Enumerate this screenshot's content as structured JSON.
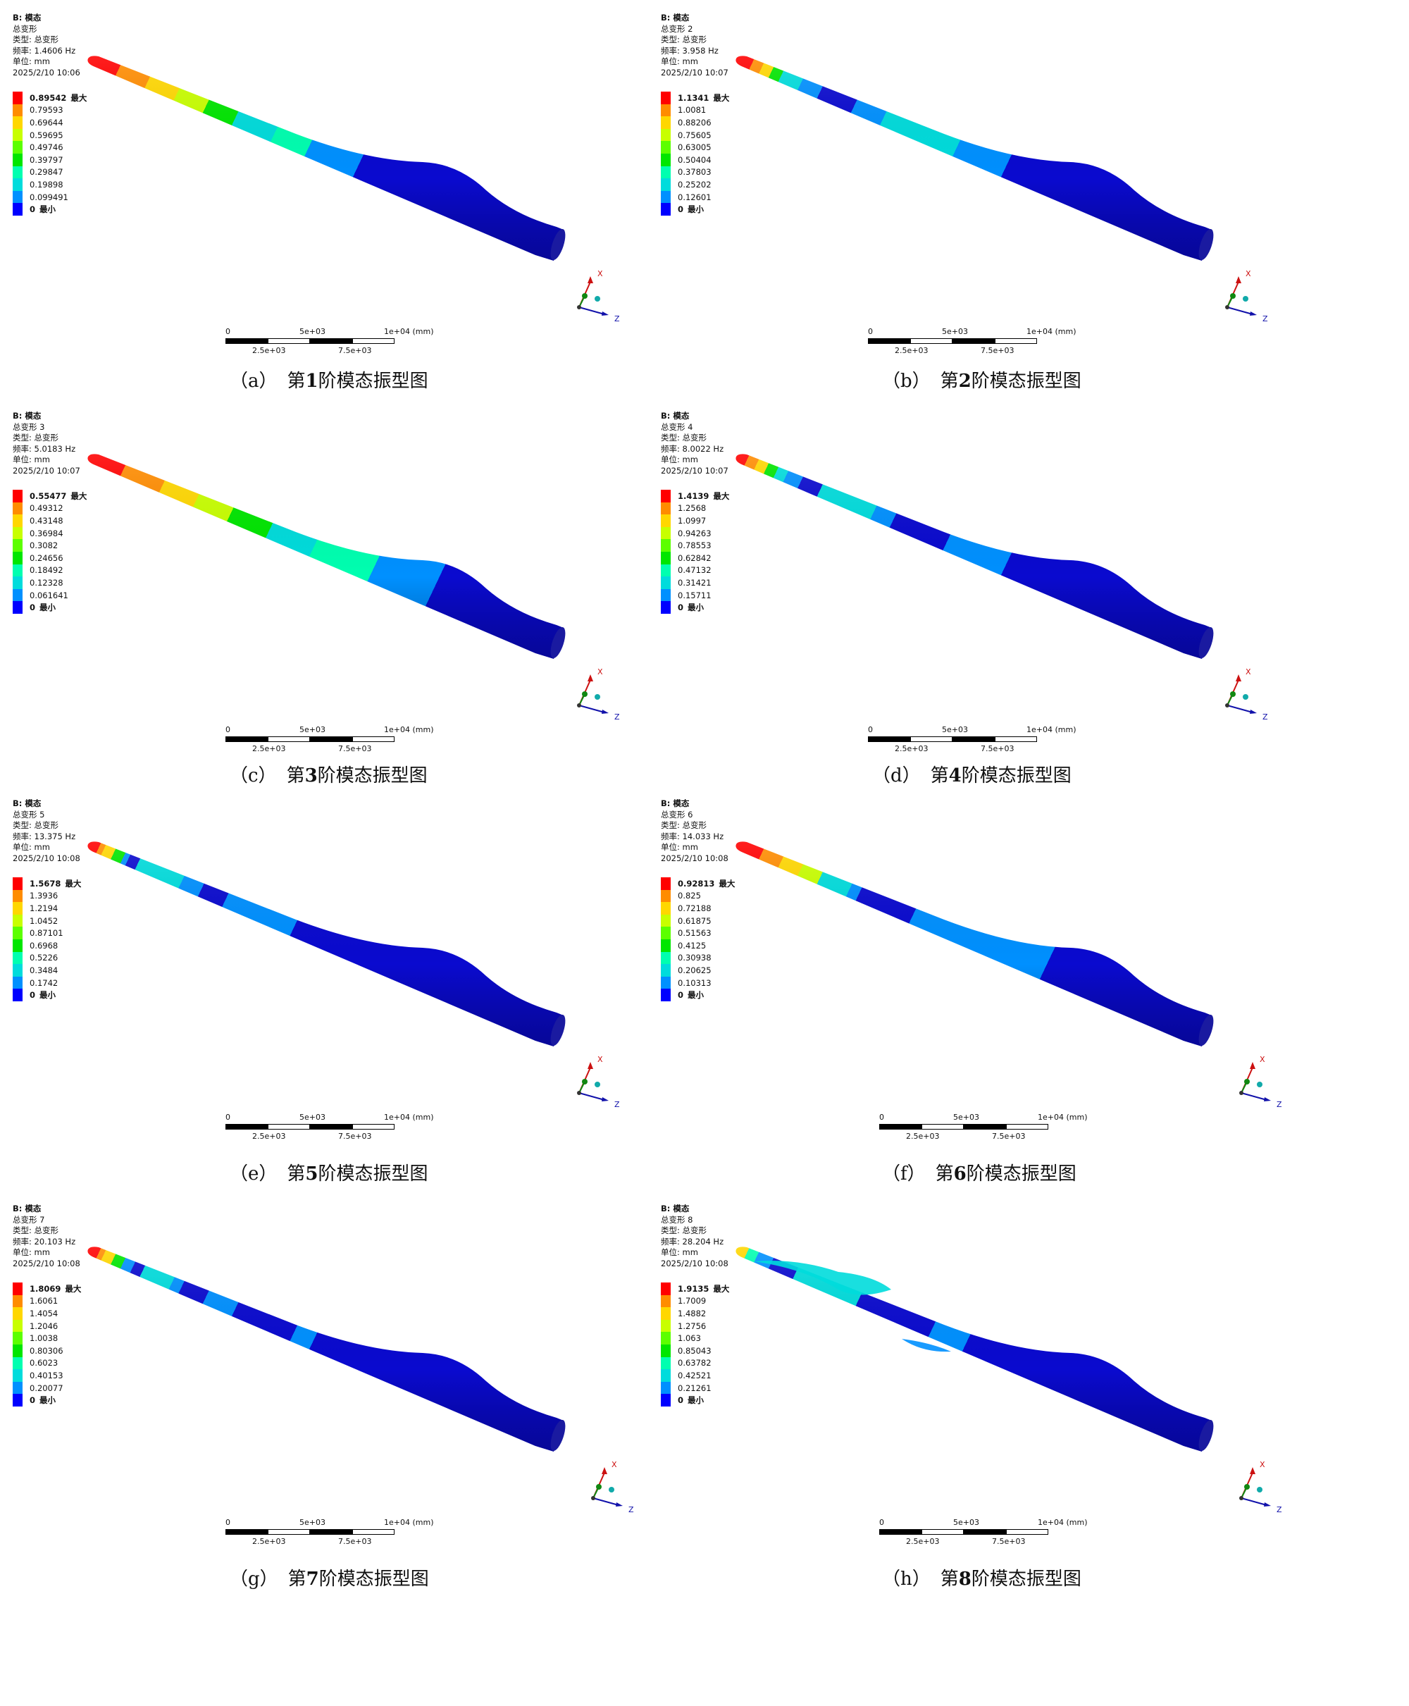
{
  "panels": [
    {
      "tag": "（a）",
      "caption_prefix": "第",
      "order": "1",
      "caption_suffix": "阶模态振型图",
      "info": [
        "B: 模态",
        "总变形",
        "类型: 总变形",
        "频率: 1.4606   Hz",
        "单位: mm",
        "2025/2/10 10:06"
      ],
      "legend": [
        "0.89542",
        "0.79593",
        "0.69644",
        "0.59695",
        "0.49746",
        "0.39797",
        "0.29847",
        "0.19898",
        "0.099491",
        "0"
      ],
      "max_tag": "最大",
      "min_tag": "最小",
      "mode": "m1"
    },
    {
      "tag": "（b）",
      "caption_prefix": "第",
      "order": "2",
      "caption_suffix": "阶模态振型图",
      "info": [
        "B: 模态",
        "总变形 2",
        "类型: 总变形",
        "频率: 3.958   Hz",
        "单位: mm",
        "2025/2/10 10:07"
      ],
      "legend": [
        "1.1341",
        "1.0081",
        "0.88206",
        "0.75605",
        "0.63005",
        "0.50404",
        "0.37803",
        "0.25202",
        "0.12601",
        "0"
      ],
      "max_tag": "最大",
      "min_tag": "最小",
      "mode": "m2"
    },
    {
      "tag": "（c）",
      "caption_prefix": "第",
      "order": "3",
      "caption_suffix": "阶模态振型图",
      "info": [
        "B: 模态",
        "总变形 3",
        "类型: 总变形",
        "频率: 5.0183   Hz",
        "单位: mm",
        "2025/2/10 10:07"
      ],
      "legend": [
        "0.55477",
        "0.49312",
        "0.43148",
        "0.36984",
        "0.3082",
        "0.24656",
        "0.18492",
        "0.12328",
        "0.061641",
        "0"
      ],
      "max_tag": "最大",
      "min_tag": "最小",
      "mode": "m3"
    },
    {
      "tag": "（d）",
      "caption_prefix": "第",
      "order": "4",
      "caption_suffix": "阶模态振型图",
      "info": [
        "B: 模态",
        "总变形 4",
        "类型: 总变形",
        "频率: 8.0022   Hz",
        "单位: mm",
        "2025/2/10 10:07"
      ],
      "legend": [
        "1.4139",
        "1.2568",
        "1.0997",
        "0.94263",
        "0.78553",
        "0.62842",
        "0.47132",
        "0.31421",
        "0.15711",
        "0"
      ],
      "max_tag": "最大",
      "min_tag": "最小",
      "mode": "m4"
    },
    {
      "tag": "（e）",
      "caption_prefix": "第",
      "order": "5",
      "caption_suffix": "阶模态振型图",
      "info": [
        "B: 模态",
        "总变形 5",
        "类型: 总变形",
        "频率: 13.375   Hz",
        "单位: mm",
        "2025/2/10 10:08"
      ],
      "legend": [
        "1.5678",
        "1.3936",
        "1.2194",
        "1.0452",
        "0.87101",
        "0.6968",
        "0.5226",
        "0.3484",
        "0.1742",
        "0"
      ],
      "max_tag": "最大",
      "min_tag": "最小",
      "mode": "m5"
    },
    {
      "tag": "（f）",
      "caption_prefix": "第",
      "order": "6",
      "caption_suffix": "阶模态振型图",
      "info": [
        "B: 模态",
        "总变形 6",
        "类型: 总变形",
        "频率: 14.033   Hz",
        "单位: mm",
        "2025/2/10 10:08"
      ],
      "legend": [
        "0.92813",
        "0.825",
        "0.72188",
        "0.61875",
        "0.51563",
        "0.4125",
        "0.30938",
        "0.20625",
        "0.10313",
        "0"
      ],
      "max_tag": "最大",
      "min_tag": "最小",
      "mode": "m6"
    },
    {
      "tag": "（g）",
      "caption_prefix": "第",
      "order": "7",
      "caption_suffix": "阶模态振型图",
      "info": [
        "B: 模态",
        "总变形 7",
        "类型: 总变形",
        "频率: 20.103   Hz",
        "单位: mm",
        "2025/2/10 10:08"
      ],
      "legend": [
        "1.8069",
        "1.6061",
        "1.4054",
        "1.2046",
        "1.0038",
        "0.80306",
        "0.6023",
        "0.40153",
        "0.20077",
        "0"
      ],
      "max_tag": "最大",
      "min_tag": "最小",
      "mode": "m7"
    },
    {
      "tag": "（h）",
      "caption_prefix": "第",
      "order": "8",
      "caption_suffix": "阶模态振型图",
      "info": [
        "B: 模态",
        "总变形 8",
        "类型: 总变形",
        "频率: 28.204   Hz",
        "单位: mm",
        "2025/2/10 10:08"
      ],
      "legend": [
        "1.9135",
        "1.7009",
        "1.4882",
        "1.2756",
        "1.063",
        "0.85043",
        "0.63782",
        "0.42521",
        "0.21261",
        "0"
      ],
      "max_tag": "最大",
      "min_tag": "最小",
      "mode": "m8"
    }
  ],
  "scale_labels": {
    "top": [
      "0",
      "5e+03",
      "1e+04 (mm)"
    ],
    "bottom": [
      "2.5e+03",
      "7.5e+03"
    ]
  },
  "axes": {
    "x": "X",
    "z": "Z"
  },
  "colors": {
    "legend": [
      "#ff0000",
      "#ff8c00",
      "#ffd700",
      "#c8ff00",
      "#5cff00",
      "#00e600",
      "#00ffb0",
      "#00dcdc",
      "#0090ff",
      "#0000ff"
    ],
    "blade_base": "#0a0acf"
  }
}
